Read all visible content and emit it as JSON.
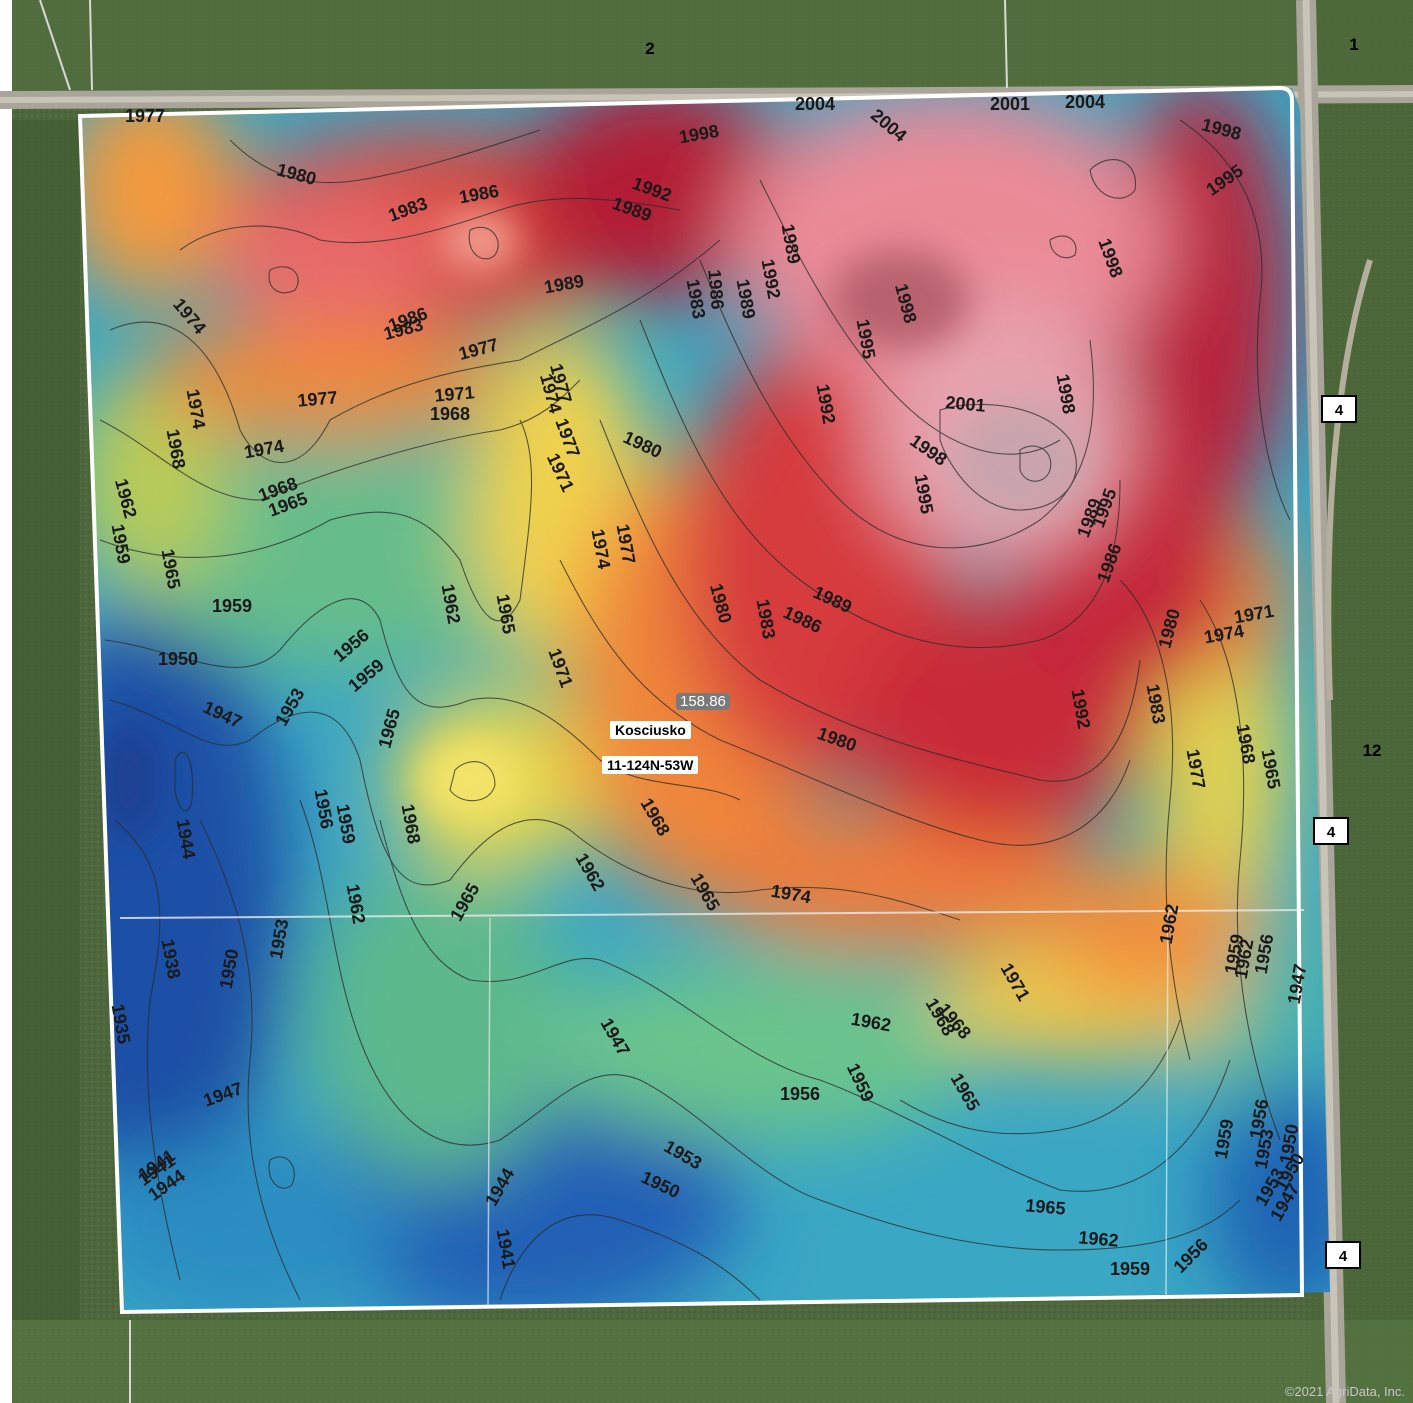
{
  "map": {
    "county": "Kosciusko",
    "legal_description": "11-124N-53W",
    "acres": "158.86",
    "copyright": "©2021 AgriData, Inc."
  },
  "sections": {
    "north": "2",
    "northeast": "1",
    "east": "12"
  },
  "road_shields": [
    "4",
    "4",
    "4"
  ],
  "colors": {
    "elev_low": "#1f5fb0",
    "elev_mid_low": "#2a9bc6",
    "elev_mid": "#6cc07a",
    "elev_mid_high": "#f1d04a",
    "elev_high": "#ee7b3a",
    "elev_higher": "#c8263a",
    "elev_peak": "#e88a9a",
    "field_boundary": "#ffffff",
    "aerial_grass": "#4f6a3e",
    "road": "#b8b4aa"
  },
  "contour_labels": [
    "1977",
    "1980",
    "1983",
    "1986",
    "2004",
    "2004",
    "2001",
    "1998",
    "2004",
    "1998",
    "1995",
    "1992",
    "1989",
    "1989",
    "1992",
    "1989",
    "1986",
    "1983",
    "1980",
    "1974",
    "1977",
    "1983",
    "1986",
    "1989",
    "1977",
    "1971",
    "1968",
    "1974",
    "1974",
    "1977",
    "1968",
    "1962",
    "1959",
    "1965",
    "1968",
    "1965",
    "1959",
    "1950",
    "1947",
    "1956",
    "1959",
    "1953",
    "1965",
    "1962",
    "1965",
    "1971",
    "1974",
    "1977",
    "1980",
    "1983",
    "1986",
    "1989",
    "1992",
    "1995",
    "1998",
    "2001",
    "1998",
    "1995",
    "1998",
    "1998",
    "1995",
    "1992",
    "1989",
    "1986",
    "1983",
    "1980",
    "1977",
    "1974",
    "1971",
    "1968",
    "1965",
    "1962",
    "1959",
    "1956",
    "1953",
    "1950",
    "1947",
    "1944",
    "1941",
    "1938",
    "1935",
    "1968",
    "1965",
    "1962",
    "1959",
    "1956",
    "1953",
    "1950",
    "1947",
    "1944",
    "1941",
    "1962",
    "1965",
    "1968",
    "1971",
    "1974",
    "1977",
    "1980",
    "1974",
    "1971",
    "1968",
    "1965",
    "1962",
    "1959",
    "1956",
    "1953",
    "1950",
    "1947",
    "1956",
    "1959",
    "1962",
    "1965",
    "1968",
    "1962",
    "1959",
    "1956",
    "1953",
    "1950",
    "1947",
    "1944",
    "1941"
  ]
}
